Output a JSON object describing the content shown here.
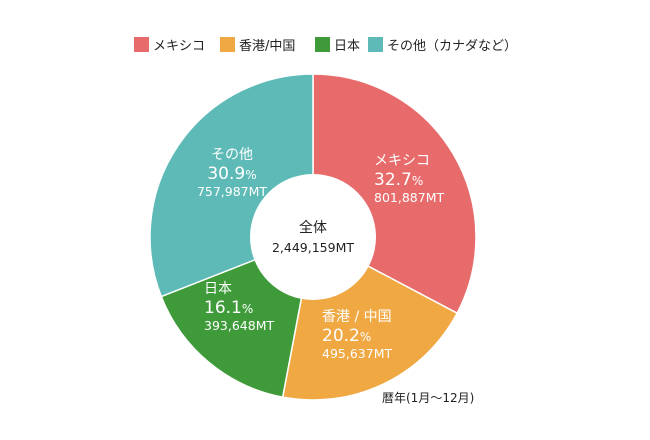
{
  "chart_data": {
    "type": "pie",
    "donut": true,
    "categories": [
      "メキシコ",
      "香港/中国",
      "日本",
      "その他（カナダなど）"
    ],
    "slice_labels": [
      "メキシコ",
      "香港 / 中国",
      "日本",
      "その他"
    ],
    "values": [
      801887,
      495637,
      393648,
      757987
    ],
    "value_labels": [
      "801,887MT",
      "495,637MT",
      "393,648MT",
      "757,987MT"
    ],
    "percent_labels": [
      "32.7",
      "20.2",
      "16.1",
      "30.9"
    ],
    "percent_sign": "%",
    "colors": [
      "#e86b6b",
      "#f0a843",
      "#3f9b3a",
      "#5ebab6"
    ],
    "legend_position": "top",
    "center": {
      "title": "全体",
      "value": "2,449,159MT"
    },
    "note": "暦年(1月〜12月)"
  }
}
